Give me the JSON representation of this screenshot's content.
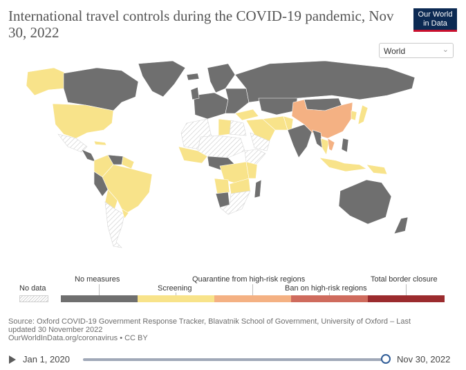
{
  "title": "International travel controls during the COVID-19 pandemic, Nov 30, 2022",
  "logo": {
    "line1": "Our World",
    "line2": "in Data"
  },
  "region_select": {
    "value": "World"
  },
  "colors": {
    "no_measures": "#6f6f6f",
    "screening": "#f8e38a",
    "quarantine": "#f4b183",
    "ban": "#cf6b5d",
    "closure": "#9b2b2e",
    "no_data": "#e4e4e4",
    "ocean": "#ffffff"
  },
  "legend": {
    "no_data": "No data",
    "items": [
      {
        "label": "No measures",
        "color": "#6f6f6f"
      },
      {
        "label": "Screening",
        "color": "#f8e38a"
      },
      {
        "label": "Quarantine from high-risk regions",
        "color": "#f4b183"
      },
      {
        "label": "Ban on high-risk regions",
        "color": "#cf6b5d"
      },
      {
        "label": "Total border closure",
        "color": "#9b2b2e"
      }
    ]
  },
  "source": {
    "line1": "Source: Oxford COVID-19 Government Response Tracker, Blavatnik School of Government, University of Oxford – Last",
    "line2": "updated 30 November 2022",
    "line3": "OurWorldInData.org/coronavirus • CC BY"
  },
  "timeline": {
    "start": "Jan 1, 2020",
    "end": "Nov 30, 2022",
    "position": 1.0
  }
}
